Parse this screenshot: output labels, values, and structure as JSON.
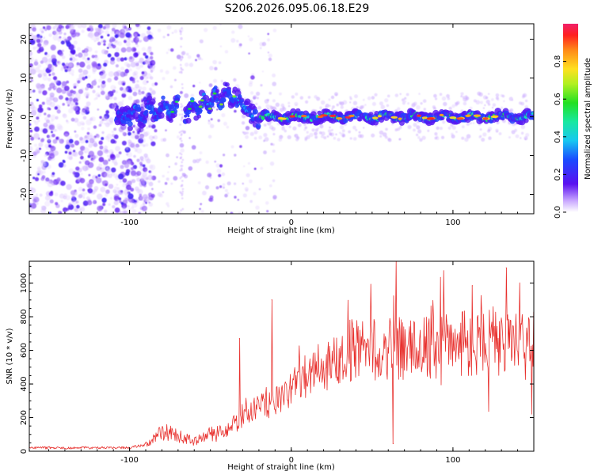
{
  "title": "S206.2026.095.06.18.E29",
  "colors": {
    "snr_line": "#e8312e",
    "spectrogram_noise": "#9b6cf0",
    "spectrogram_band": "#38d6e8"
  },
  "chart_data": [
    {
      "type": "heatmap",
      "name": "spectrogram",
      "xlabel": "Height of straight line (km)",
      "ylabel": "Frequency (Hz)",
      "xlim": [
        -162,
        150
      ],
      "ylim": [
        -25,
        24
      ],
      "xticks": [
        -100,
        0,
        100
      ],
      "yticks": [
        -20,
        -10,
        0,
        10,
        20
      ],
      "colorbar": {
        "label": "Normalized spectral amplitude",
        "range": [
          0,
          1
        ],
        "ticks": [
          0.0,
          0.2,
          0.4,
          0.6,
          0.8
        ],
        "tick_labels": [
          "0.0",
          "0.2",
          "0.4",
          "0.6",
          "0.8"
        ],
        "colormap": "rainbow"
      },
      "features": [
        {
          "label": "diffuse noise",
          "x_range": [
            -162,
            -105
          ],
          "freq_range": [
            -25,
            24
          ],
          "amplitude": 0.1
        },
        {
          "label": "rising signal",
          "x_range": [
            -105,
            -35
          ],
          "freq_start": 0,
          "freq_end": 6,
          "amplitude": 0.3
        },
        {
          "label": "steady line near 0 Hz",
          "x_range": [
            -20,
            150
          ],
          "freq": 0,
          "amplitude": 0.9
        }
      ]
    },
    {
      "type": "line",
      "name": "snr",
      "xlabel": "Height of straight line (km)",
      "ylabel": "SNR (10 * v/v)",
      "xlim": [
        -162,
        150
      ],
      "ylim": [
        0,
        1130
      ],
      "xticks": [
        -100,
        0,
        100
      ],
      "yticks": [
        0,
        200,
        400,
        600,
        800,
        1000
      ],
      "envelope_x": [
        -162,
        -100,
        -90,
        -80,
        -70,
        -60,
        -50,
        -40,
        -30,
        -20,
        -10,
        0,
        10,
        20,
        30,
        40,
        60,
        80,
        100,
        120,
        150
      ],
      "envelope_y": [
        20,
        22,
        40,
        120,
        90,
        60,
        100,
        110,
        200,
        260,
        300,
        380,
        450,
        520,
        580,
        600,
        600,
        620,
        630,
        640,
        620
      ],
      "spikes": [
        {
          "x": -12,
          "y": 900
        },
        {
          "x": -32,
          "y": 670
        },
        {
          "x": 65,
          "y": 1130
        },
        {
          "x": 63,
          "y": 45
        },
        {
          "x": 133,
          "y": 1090
        },
        {
          "x": 112,
          "y": 985
        }
      ]
    }
  ]
}
